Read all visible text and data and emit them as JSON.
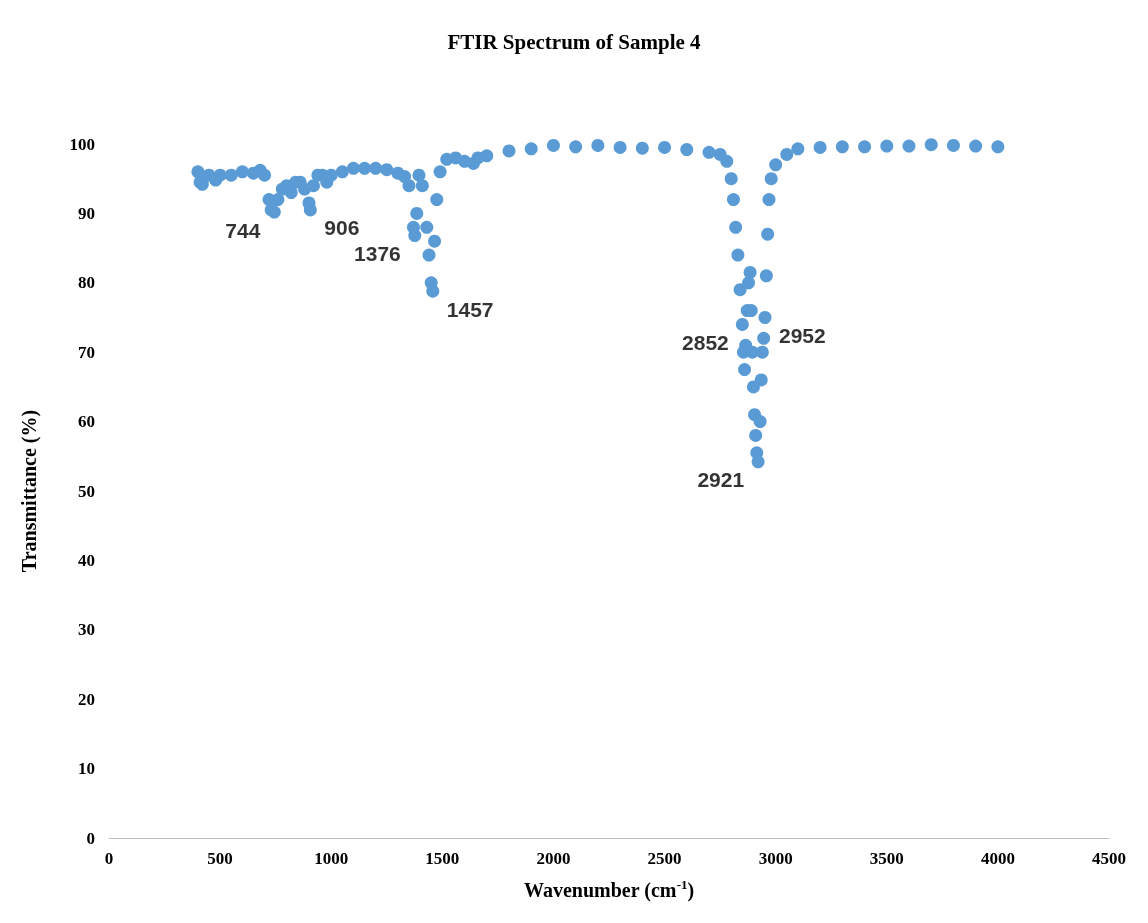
{
  "chart_data": {
    "type": "scatter",
    "title": "FTIR Spectrum of Sample 4",
    "xlabel": "Wavenumber (cm$^{-1}$)",
    "ylabel": "Transmittance (%)",
    "x": [
      400,
      410,
      420,
      450,
      480,
      500,
      550,
      600,
      650,
      680,
      700,
      720,
      730,
      744,
      760,
      780,
      800,
      820,
      840,
      860,
      880,
      900,
      906,
      920,
      940,
      960,
      980,
      1000,
      1050,
      1100,
      1150,
      1200,
      1250,
      1300,
      1330,
      1350,
      1370,
      1376,
      1385,
      1395,
      1410,
      1430,
      1440,
      1450,
      1457,
      1465,
      1475,
      1490,
      1520,
      1560,
      1600,
      1640,
      1660,
      1700,
      1800,
      1900,
      2000,
      2100,
      2200,
      2300,
      2400,
      2500,
      2600,
      2700,
      2750,
      2780,
      2800,
      2810,
      2820,
      2830,
      2840,
      2850,
      2855,
      2860,
      2865,
      2872,
      2878,
      2885,
      2890,
      2895,
      2900,
      2905,
      2910,
      2915,
      2921,
      2930,
      2935,
      2940,
      2946,
      2952,
      2958,
      2964,
      2970,
      2980,
      3000,
      3050,
      3100,
      3200,
      3300,
      3400,
      3500,
      3600,
      3700,
      3800,
      3900,
      4000
    ],
    "series": [
      {
        "color": "#5b9bd5",
        "values": [
          96,
          94.5,
          94.2,
          95.5,
          94.8,
          95.5,
          95.5,
          96,
          95.8,
          96.2,
          95.5,
          92,
          90.5,
          90.2,
          92,
          93.5,
          94,
          93,
          94.5,
          94.5,
          93.5,
          91.5,
          90.5,
          94,
          95.5,
          95.5,
          94.5,
          95.5,
          96,
          96.5,
          96.5,
          96.5,
          96.3,
          95.8,
          95.3,
          94,
          88,
          86.8,
          90,
          95.5,
          94,
          88,
          84,
          80,
          78.8,
          86,
          92,
          96,
          97.8,
          98,
          97.5,
          97.2,
          98,
          98.3,
          99,
          99.3,
          99.8,
          99.6,
          99.8,
          99.5,
          99.4,
          99.5,
          99.2,
          98.8,
          98.5,
          97.5,
          95,
          92,
          88,
          84,
          79,
          74,
          70,
          67.5,
          71,
          76,
          80,
          81.5,
          76,
          70,
          65,
          61,
          58,
          55.5,
          54.2,
          60,
          66,
          70,
          72,
          75,
          81,
          87,
          92,
          95,
          97,
          98.5,
          99.3,
          99.5,
          99.6,
          99.6,
          99.7,
          99.7,
          99.9,
          99.8,
          99.7,
          99.6
        ]
      }
    ],
    "annotations": [
      {
        "text": "744",
        "x": 744,
        "y": 90.2
      },
      {
        "text": "906",
        "x": 906,
        "y": 90.5
      },
      {
        "text": "1376",
        "x": 1376,
        "y": 86.8
      },
      {
        "text": "1457",
        "x": 1457,
        "y": 78.8
      },
      {
        "text": "2952",
        "x": 2952,
        "y": 75
      },
      {
        "text": "2852",
        "x": 2852,
        "y": 74
      },
      {
        "text": "2921",
        "x": 2921,
        "y": 54.2
      }
    ],
    "xlim": [
      0,
      4500
    ],
    "xticks": [
      0,
      500,
      1000,
      1500,
      2000,
      2500,
      3000,
      3500,
      4000,
      4500
    ],
    "ylim": [
      0,
      100
    ],
    "yticks": [
      0,
      10,
      20,
      30,
      40,
      50,
      60,
      70,
      80,
      90,
      100
    ],
    "marker": "circle",
    "grid": false
  }
}
